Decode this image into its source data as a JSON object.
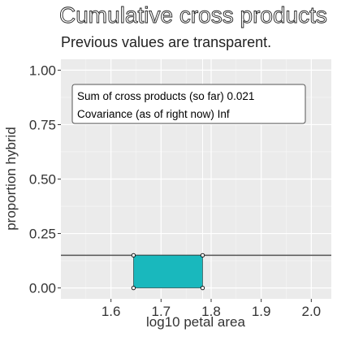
{
  "chart_data": {
    "type": "scatter",
    "title": "Cumulative cross products",
    "subtitle": "Previous values are transparent.",
    "xlabel": "log10 petal area",
    "ylabel": "proportion hybrid",
    "xlim": [
      1.5,
      2.04
    ],
    "ylim": [
      -0.05,
      1.05
    ],
    "x_ticks": [
      "1.6",
      "1.7",
      "1.8",
      "1.9",
      "2.0"
    ],
    "y_ticks": [
      "0.00",
      "0.25",
      "0.50",
      "0.75",
      "1.00"
    ],
    "grid": true,
    "mean_y": 0.15,
    "mean_x": 1.783,
    "rectangle": {
      "x0": 1.645,
      "x1": 1.783,
      "y0": 0.0,
      "y1": 0.15,
      "color": "#19b8bd"
    },
    "points": [
      {
        "x": 1.645,
        "y": 0.0
      },
      {
        "x": 1.645,
        "y": 0.15
      },
      {
        "x": 1.783,
        "y": 0.15
      },
      {
        "x": 1.783,
        "y": 0.0
      }
    ],
    "annotation": {
      "line1": "Sum of cross products (so far) 0.021",
      "line2": "Covariance (as of right now) Inf"
    }
  }
}
